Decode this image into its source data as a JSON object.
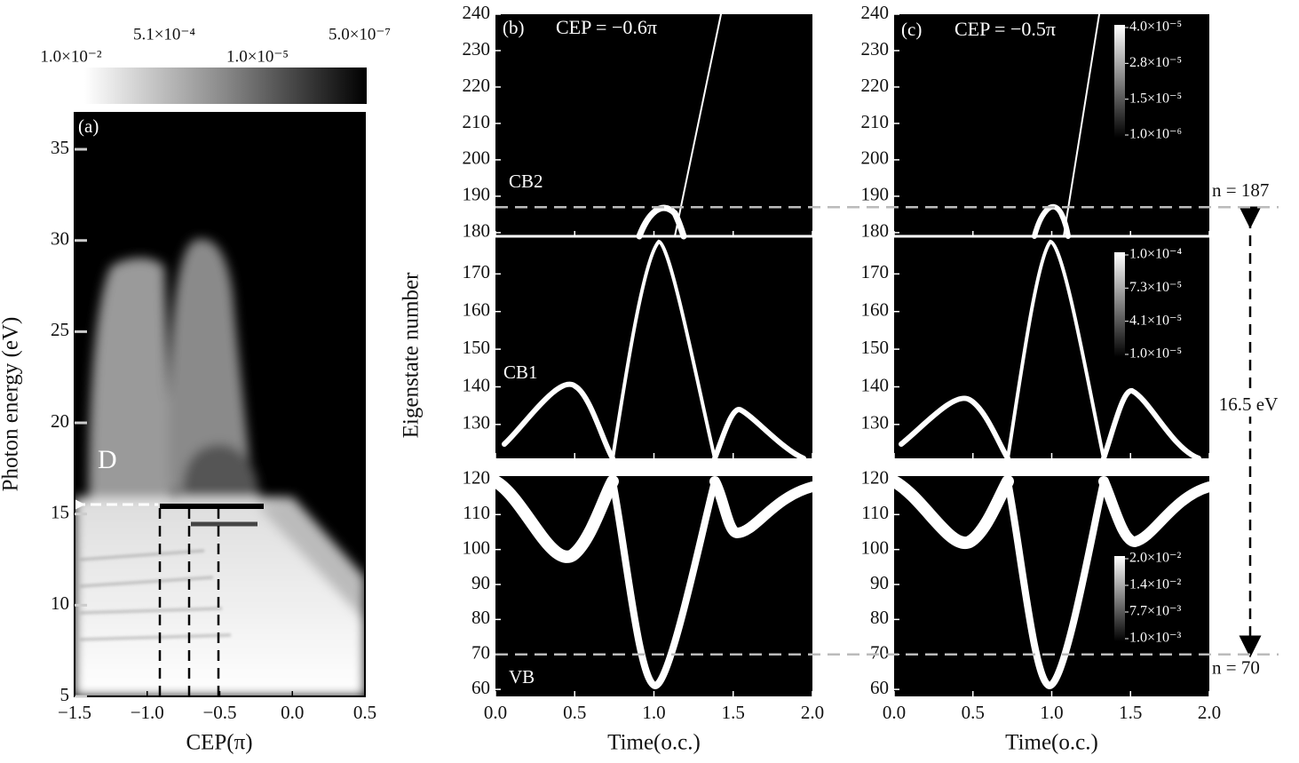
{
  "chart_data": [
    {
      "type": "heatmap",
      "label": "(a)",
      "annotation": "D",
      "xlabel": "CEP(π)",
      "ylabel": "Photon energy (eV)",
      "xlim": [
        -1.5,
        0.5
      ],
      "xticks": [
        {
          "value": -1.5,
          "label": "−1.5"
        },
        {
          "value": -1.0,
          "label": "−1.0"
        },
        {
          "value": -0.5,
          "label": "−0.5"
        },
        {
          "value": 0,
          "label": "0.0"
        },
        0.5
      ],
      "ylim": [
        5,
        37
      ],
      "yticks": [
        5,
        10,
        15,
        20,
        25,
        30,
        35
      ],
      "colorbar": [
        {
          "value": 0.01,
          "label": "1.0×10⁻²"
        },
        {
          "value": 0.00051,
          "label": "5.1×10⁻⁴"
        },
        {
          "value": 1e-05,
          "label": "1.0×10⁻⁵"
        },
        {
          "value": 5e-07,
          "label": "5.0×10⁻⁷"
        }
      ]
    },
    {
      "type": "heatmap",
      "label": "(b)",
      "title": "CEP = −0.6π",
      "xlabel": "Time(o.c.)",
      "ylabel": "Eigenstate number",
      "xlim": [
        0,
        2
      ],
      "xticks": [
        {
          "value": 0,
          "label": "0.0"
        },
        0.5,
        {
          "value": 1,
          "label": "1.0"
        },
        1.5,
        {
          "value": 2,
          "label": "2.0"
        }
      ],
      "subplots": [
        {
          "annotation": "CB2",
          "ylim": [
            179,
            240
          ],
          "yticks": [
            180,
            190,
            200,
            210,
            220,
            230,
            240
          ]
        },
        {
          "annotation": "CB1",
          "ylim": [
            121,
            180
          ],
          "yticks": [
            130,
            140,
            150,
            160,
            170
          ]
        },
        {
          "annotation": "VB",
          "ylim": [
            58,
            121
          ],
          "yticks": [
            60,
            70,
            80,
            90,
            100,
            110,
            120
          ]
        }
      ]
    },
    {
      "type": "heatmap",
      "label": "(c)",
      "title": "CEP = −0.5π",
      "xlabel": "Time(o.c.)",
      "xlim": [
        0,
        2
      ],
      "xticks": [
        {
          "value": 0,
          "label": "0.0"
        },
        0.5,
        {
          "value": 1,
          "label": "1.0"
        },
        1.5,
        {
          "value": 2,
          "label": "2.0"
        }
      ],
      "subplots": [
        {
          "ylim": [
            179,
            240
          ],
          "yticks": [
            180,
            190,
            200,
            210,
            220,
            230,
            240
          ],
          "colorbar": [
            {
              "value": 4e-05,
              "label": "4.0×10⁻⁵"
            },
            {
              "value": 2.8e-05,
              "label": "2.8×10⁻⁵"
            },
            {
              "value": 1.5e-05,
              "label": "1.5×10⁻⁵"
            },
            {
              "value": 1e-06,
              "label": "1.0×10⁻⁶"
            }
          ]
        },
        {
          "ylim": [
            121,
            180
          ],
          "yticks": [
            130,
            140,
            150,
            160,
            170
          ],
          "colorbar": [
            {
              "value": 0.0001,
              "label": "1.0×10⁻⁴"
            },
            {
              "value": 7.3e-05,
              "label": "7.3×10⁻⁵"
            },
            {
              "value": 4.1e-05,
              "label": "4.1×10⁻⁵"
            },
            {
              "value": 1e-05,
              "label": "1.0×10⁻⁵"
            }
          ]
        },
        {
          "ylim": [
            58,
            121
          ],
          "yticks": [
            60,
            70,
            80,
            90,
            100,
            110,
            120
          ],
          "colorbar": [
            {
              "value": 0.02,
              "label": "2.0×10⁻²"
            },
            {
              "value": 0.014,
              "label": "1.4×10⁻²"
            },
            {
              "value": 0.0077,
              "label": "7.7×10⁻³"
            },
            {
              "value": 0.001,
              "label": "1.0×10⁻³"
            }
          ]
        }
      ]
    }
  ],
  "annotations": {
    "levels": [
      {
        "value": 187,
        "label": "n = 187",
        "subplot": 0
      },
      {
        "value": 70,
        "label": "n = 70",
        "subplot": 2
      }
    ],
    "gap": "16.5 eV"
  }
}
